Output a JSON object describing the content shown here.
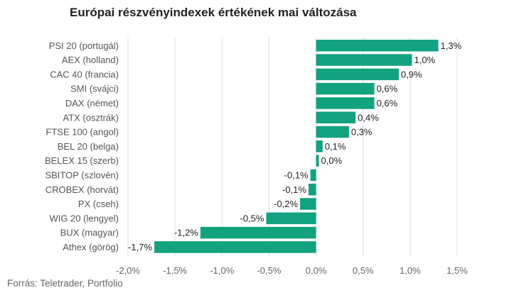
{
  "chart_data": {
    "type": "bar",
    "orientation": "horizontal",
    "title": "Európai részvényindexek értékének mai változása",
    "categories": [
      "PSI 20 (portugál)",
      "AEX (holland)",
      "CAC 40 (francia)",
      "SMI (svájci)",
      "DAX (német)",
      "ATX (osztrák)",
      "FTSE 100 (angol)",
      "BEL 20 (belga)",
      "BELEX 15 (szerb)",
      "SBITOP (szlovén)",
      "CROBEX (horvát)",
      "PX (cseh)",
      "WIG 20 (lengyel)",
      "BUX (magyar)",
      "Athex (görög)"
    ],
    "values": [
      1.3,
      1.02,
      0.88,
      0.62,
      0.62,
      0.42,
      0.35,
      0.07,
      0.03,
      -0.06,
      -0.08,
      -0.17,
      -0.53,
      -1.23,
      -1.72
    ],
    "value_labels": [
      "1,3%",
      "1,0%",
      "0,9%",
      "0,6%",
      "0,6%",
      "0,4%",
      "0,3%",
      "0,1%",
      "0,0%",
      "-0,1%",
      "-0,1%",
      "-0,2%",
      "-0,5%",
      "-1,2%",
      "-1,7%"
    ],
    "xlim": [
      -2.0,
      1.5
    ],
    "ticks": [
      -2.0,
      -1.5,
      -1.0,
      -0.5,
      0.0,
      0.5,
      1.0,
      1.5
    ],
    "tick_labels": [
      "-2,0%",
      "-1,5%",
      "-1,0%",
      "-0,5%",
      "0,0%",
      "0,5%",
      "1,0%",
      "1,5%"
    ],
    "grid": "vertical",
    "bar_color": "#13a280",
    "grid_color": "#dddddd"
  },
  "source": "Forrás: Teletrader, Portfolio"
}
